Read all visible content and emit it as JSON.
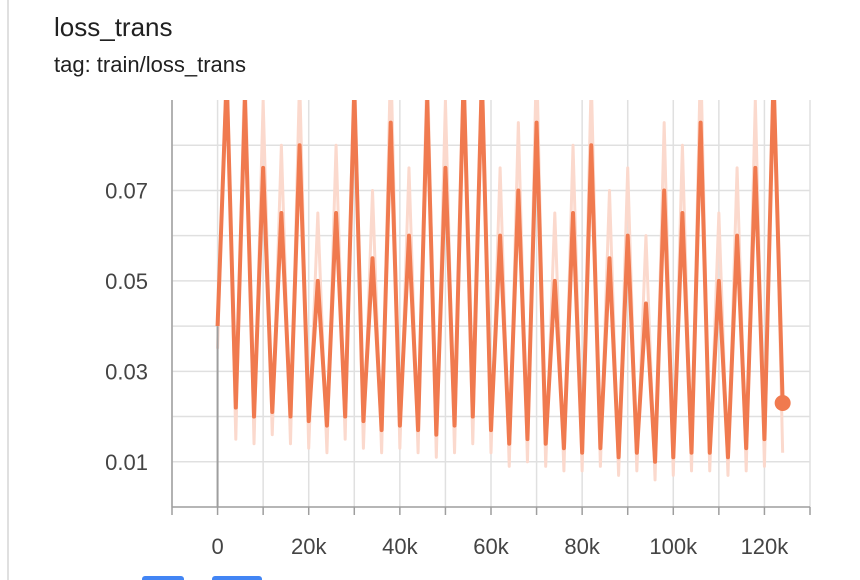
{
  "chart_data": {
    "type": "line",
    "title": "loss_trans",
    "subtitle": "tag: train/loss_trans",
    "x": [
      0,
      2000,
      4000,
      6000,
      8000,
      10000,
      12000,
      14000,
      16000,
      18000,
      20000,
      22000,
      24000,
      26000,
      28000,
      30000,
      32000,
      34000,
      36000,
      38000,
      40000,
      42000,
      44000,
      46000,
      48000,
      50000,
      52000,
      54000,
      56000,
      58000,
      60000,
      62000,
      64000,
      66000,
      68000,
      70000,
      72000,
      74000,
      76000,
      78000,
      80000,
      82000,
      84000,
      86000,
      88000,
      90000,
      92000,
      94000,
      96000,
      98000,
      100000,
      102000,
      104000,
      106000,
      108000,
      110000,
      112000,
      114000,
      116000,
      118000,
      120000,
      122000,
      124000
    ],
    "series": [
      {
        "color": "#fbd9cd",
        "values": [
          0.035,
          0.1,
          0.015,
          0.1,
          0.014,
          0.09,
          0.016,
          0.08,
          0.014,
          0.095,
          0.013,
          0.065,
          0.012,
          0.08,
          0.015,
          0.1,
          0.013,
          0.07,
          0.012,
          0.1,
          0.013,
          0.075,
          0.012,
          0.1,
          0.011,
          0.09,
          0.012,
          0.1,
          0.014,
          0.1,
          0.012,
          0.075,
          0.009,
          0.085,
          0.01,
          0.1,
          0.009,
          0.065,
          0.008,
          0.08,
          0.008,
          0.095,
          0.009,
          0.07,
          0.007,
          0.075,
          0.008,
          0.06,
          0.006,
          0.085,
          0.007,
          0.08,
          0.008,
          0.1,
          0.008,
          0.065,
          0.007,
          0.075,
          0.008,
          0.09,
          0.009,
          0.1,
          0.012
        ]
      },
      {
        "color": "#f07a4f",
        "values": [
          0.04,
          0.095,
          0.022,
          0.09,
          0.02,
          0.075,
          0.021,
          0.065,
          0.02,
          0.08,
          0.019,
          0.05,
          0.018,
          0.065,
          0.02,
          0.092,
          0.019,
          0.055,
          0.017,
          0.085,
          0.018,
          0.06,
          0.017,
          0.09,
          0.016,
          0.075,
          0.018,
          0.095,
          0.02,
          0.095,
          0.017,
          0.06,
          0.014,
          0.07,
          0.015,
          0.085,
          0.014,
          0.05,
          0.013,
          0.065,
          0.012,
          0.08,
          0.013,
          0.055,
          0.011,
          0.06,
          0.012,
          0.045,
          0.01,
          0.07,
          0.011,
          0.065,
          0.012,
          0.085,
          0.012,
          0.05,
          0.011,
          0.06,
          0.013,
          0.075,
          0.015,
          0.095,
          0.023
        ]
      }
    ],
    "xlim": [
      -10000,
      130000
    ],
    "ylim": [
      0,
      0.09
    ],
    "xticks": [
      0,
      {
        "value": 20000,
        "label": "20k"
      },
      {
        "value": 40000,
        "label": "40k"
      },
      {
        "value": 60000,
        "label": "60k"
      },
      {
        "value": 80000,
        "label": "80k"
      },
      {
        "value": 100000,
        "label": "100k"
      },
      {
        "value": 120000,
        "label": "120k"
      }
    ],
    "xgrid": [
      -10000,
      0,
      10000,
      20000,
      30000,
      40000,
      50000,
      60000,
      70000,
      80000,
      90000,
      100000,
      110000,
      120000,
      130000
    ],
    "yticks": [
      0.01,
      0.03,
      0.05,
      0.07
    ],
    "ygrid": [
      0.01,
      0.02,
      0.03,
      0.04,
      0.05,
      0.06,
      0.07,
      0.08
    ],
    "grid": true
  }
}
